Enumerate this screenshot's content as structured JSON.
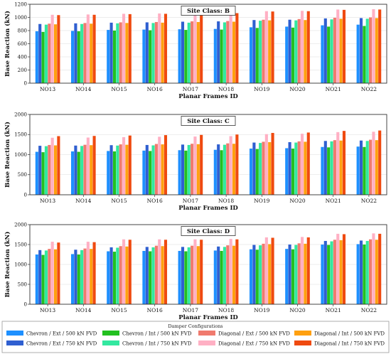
{
  "legend": {
    "title": "Damper Configurations",
    "colors": [
      "#1e90ff",
      "#2f5fd0",
      "#22c020",
      "#33e8a0",
      "#f07a6e",
      "#ffb0c4",
      "#ffa010",
      "#ef4a10"
    ]
  },
  "chart_data": [
    {
      "type": "bar",
      "site_label": "Site Class: B",
      "ylabel": "Base Reaction (kN)",
      "xlabel": "Planar Frames ID",
      "ylim": [
        0,
        1200
      ],
      "yticks": [
        0,
        200,
        400,
        600,
        800,
        1000,
        1200
      ],
      "grid": true,
      "categories": [
        "NO13",
        "NO14",
        "NO15",
        "NO16",
        "NO17",
        "NO18",
        "NO19",
        "NO20",
        "NO21",
        "NO22"
      ],
      "series": [
        {
          "name": "Chevron / Ext / 500 kN FVD",
          "values": [
            790,
            795,
            810,
            815,
            820,
            825,
            850,
            860,
            880,
            890
          ]
        },
        {
          "name": "Chevron / Ext / 750 kN FVD",
          "values": [
            900,
            910,
            920,
            925,
            935,
            940,
            960,
            965,
            985,
            990
          ]
        },
        {
          "name": "Chevron / Int / 500 kN FVD",
          "values": [
            780,
            790,
            800,
            805,
            810,
            815,
            840,
            845,
            860,
            870
          ]
        },
        {
          "name": "Chevron / Int / 750 kN FVD",
          "values": [
            890,
            900,
            910,
            915,
            920,
            925,
            950,
            955,
            970,
            980
          ]
        },
        {
          "name": "Diagonal / Ext / 500 kN FVD",
          "values": [
            905,
            915,
            925,
            930,
            940,
            945,
            965,
            975,
            995,
            1000
          ]
        },
        {
          "name": "Diagonal / Ext / 750 kN FVD",
          "values": [
            1040,
            1045,
            1055,
            1060,
            1065,
            1070,
            1095,
            1100,
            1120,
            1125
          ]
        },
        {
          "name": "Diagonal / Int / 500 kN FVD",
          "values": [
            895,
            905,
            915,
            920,
            930,
            935,
            955,
            960,
            980,
            990
          ]
        },
        {
          "name": "Diagonal / Int / 750 kN FVD",
          "values": [
            1035,
            1040,
            1050,
            1055,
            1060,
            1065,
            1090,
            1095,
            1115,
            1120
          ]
        }
      ]
    },
    {
      "type": "bar",
      "site_label": "Site Class: C",
      "ylabel": "Base Reaction (kN)",
      "xlabel": "Planar Frames ID",
      "ylim": [
        0,
        2000
      ],
      "yticks": [
        0,
        500,
        1000,
        1500,
        2000
      ],
      "grid": true,
      "categories": [
        "NO13",
        "NO14",
        "NO15",
        "NO16",
        "NO17",
        "NO18",
        "NO19",
        "NO20",
        "NO21",
        "NO22"
      ],
      "series": [
        {
          "name": "Chevron / Ext / 500 kN FVD",
          "values": [
            1070,
            1080,
            1090,
            1100,
            1110,
            1120,
            1150,
            1160,
            1190,
            1200
          ]
        },
        {
          "name": "Chevron / Ext / 750 kN FVD",
          "values": [
            1220,
            1225,
            1235,
            1240,
            1250,
            1255,
            1300,
            1310,
            1340,
            1350
          ]
        },
        {
          "name": "Chevron / Int / 500 kN FVD",
          "values": [
            1060,
            1070,
            1080,
            1090,
            1100,
            1110,
            1140,
            1150,
            1180,
            1190
          ]
        },
        {
          "name": "Chevron / Int / 750 kN FVD",
          "values": [
            1210,
            1215,
            1225,
            1230,
            1240,
            1245,
            1290,
            1300,
            1330,
            1340
          ]
        },
        {
          "name": "Diagonal / Ext / 500 kN FVD",
          "values": [
            1240,
            1245,
            1255,
            1265,
            1270,
            1280,
            1320,
            1330,
            1360,
            1370
          ]
        },
        {
          "name": "Diagonal / Ext / 750 kN FVD",
          "values": [
            1420,
            1425,
            1435,
            1445,
            1450,
            1460,
            1510,
            1520,
            1560,
            1570
          ]
        },
        {
          "name": "Diagonal / Int / 500 kN FVD",
          "values": [
            1230,
            1235,
            1245,
            1255,
            1260,
            1270,
            1310,
            1320,
            1350,
            1360
          ]
        },
        {
          "name": "Diagonal / Int / 750 kN FVD",
          "values": [
            1460,
            1465,
            1475,
            1485,
            1490,
            1500,
            1540,
            1550,
            1590,
            1600
          ]
        }
      ]
    },
    {
      "type": "bar",
      "site_label": "Site Class: D",
      "ylabel": "Base Reaction (kN)",
      "xlabel": "Planar Frames ID",
      "ylim": [
        0,
        2000
      ],
      "yticks": [
        0,
        500,
        1000,
        1500,
        2000
      ],
      "grid": true,
      "categories": [
        "NO13",
        "NO14",
        "NO15",
        "NO16",
        "NO17",
        "NO18",
        "NO19",
        "NO20",
        "NO21",
        "NO22"
      ],
      "series": [
        {
          "name": "Chevron / Ext / 500 kN FVD",
          "values": [
            1250,
            1260,
            1330,
            1340,
            1340,
            1350,
            1380,
            1390,
            1500,
            1510
          ]
        },
        {
          "name": "Chevron / Ext / 750 kN FVD",
          "values": [
            1360,
            1370,
            1430,
            1440,
            1440,
            1450,
            1490,
            1500,
            1590,
            1600
          ]
        },
        {
          "name": "Chevron / Int / 500 kN FVD",
          "values": [
            1240,
            1250,
            1320,
            1330,
            1330,
            1340,
            1370,
            1380,
            1490,
            1500
          ]
        },
        {
          "name": "Chevron / Int / 750 kN FVD",
          "values": [
            1350,
            1360,
            1420,
            1430,
            1430,
            1440,
            1480,
            1490,
            1580,
            1590
          ]
        },
        {
          "name": "Diagonal / Ext / 500 kN FVD",
          "values": [
            1390,
            1400,
            1460,
            1470,
            1470,
            1480,
            1520,
            1530,
            1620,
            1630
          ]
        },
        {
          "name": "Diagonal / Ext / 750 kN FVD",
          "values": [
            1570,
            1570,
            1630,
            1630,
            1630,
            1640,
            1680,
            1690,
            1770,
            1780
          ]
        },
        {
          "name": "Diagonal / Int / 500 kN FVD",
          "values": [
            1380,
            1390,
            1450,
            1460,
            1460,
            1470,
            1510,
            1520,
            1610,
            1620
          ]
        },
        {
          "name": "Diagonal / Int / 750 kN FVD",
          "values": [
            1550,
            1560,
            1620,
            1620,
            1620,
            1630,
            1670,
            1680,
            1760,
            1770
          ]
        }
      ]
    }
  ]
}
